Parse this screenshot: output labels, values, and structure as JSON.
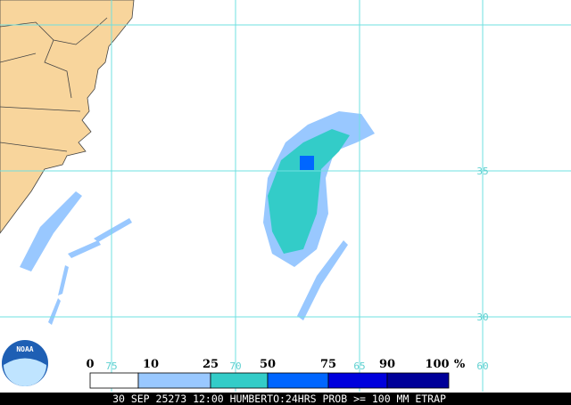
{
  "map": {
    "lon_labels": [
      75,
      70,
      65,
      60
    ],
    "lat_labels": [
      35,
      30
    ],
    "legend": {
      "ticks": [
        0,
        10,
        25,
        50,
        75,
        90,
        100
      ],
      "unit": "%",
      "colors": [
        "#ffffff",
        "#99c8ff",
        "#33ccc8",
        "#0066ff",
        "#0000dd",
        "#000099"
      ]
    },
    "logo": "NOAA",
    "footer": "30 SEP 25273 12:00 HUMBERTO:24HRS PROB >= 100 MM ETRAP"
  }
}
